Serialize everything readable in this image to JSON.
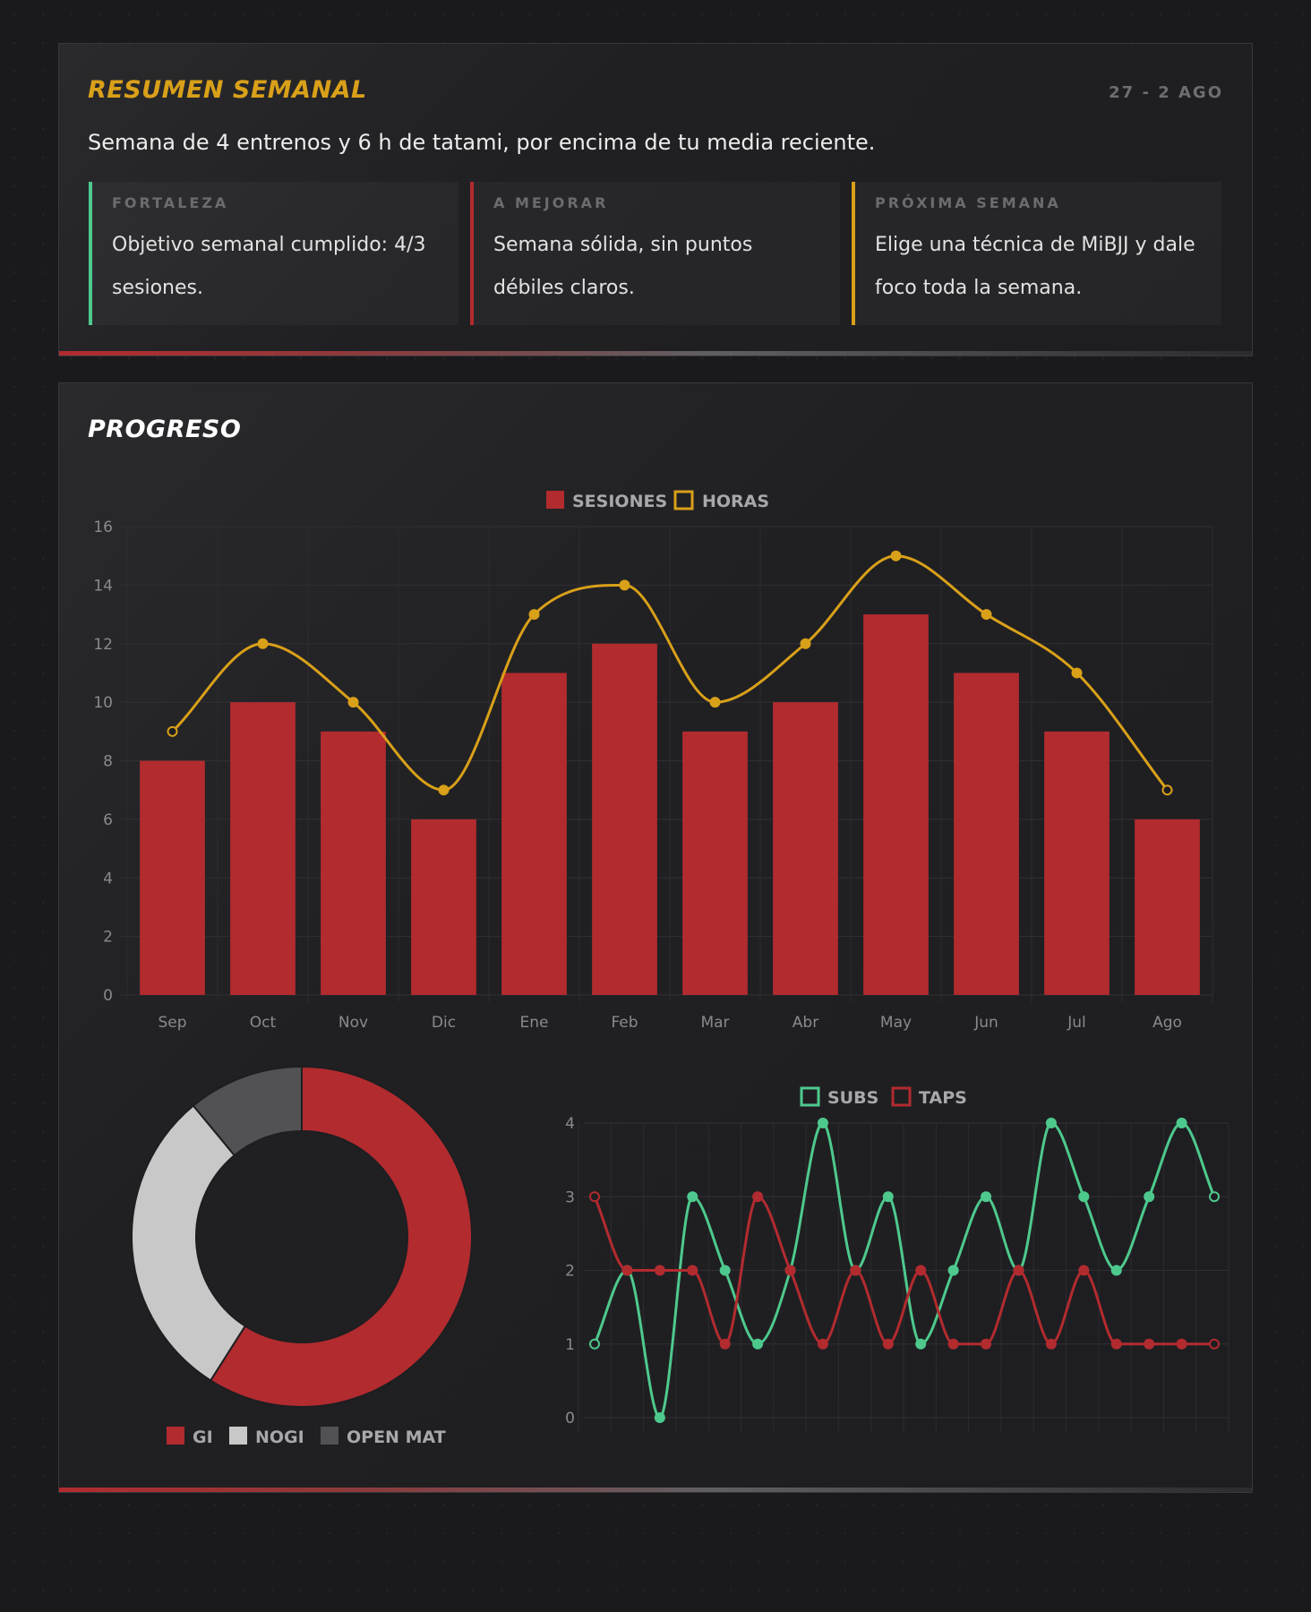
{
  "summary": {
    "title": "RESUMEN SEMANAL",
    "range": "27 - 2 AGO",
    "text": "Semana de 4 entrenos y 6 h de tatami, por encima de tu media reciente.",
    "insights": [
      {
        "label": "FORTALEZA",
        "text": "Objetivo semanal cumplido: 4/3 sesiones.",
        "color": "#4ec98d"
      },
      {
        "label": "A MEJORAR",
        "text": "Semana sólida, sin puntos débiles claros.",
        "color": "#b22b2f"
      },
      {
        "label": "PRÓXIMA SEMANA",
        "text": "Elige una técnica de MiBJJ y dale foco toda la semana.",
        "color": "#d9a019"
      }
    ]
  },
  "progress": {
    "title": "PROGRESO"
  },
  "chart_data": [
    {
      "type": "bar",
      "categories": [
        "Sep",
        "Oct",
        "Nov",
        "Dic",
        "Ene",
        "Feb",
        "Mar",
        "Abr",
        "May",
        "Jun",
        "Jul",
        "Ago"
      ],
      "series": [
        {
          "name": "SESIONES",
          "type": "bar",
          "color": "#b22b2f",
          "values": [
            8,
            10,
            9,
            6,
            11,
            12,
            9,
            10,
            13,
            11,
            9,
            6
          ]
        },
        {
          "name": "HORAS",
          "type": "line",
          "color": "#d9a019",
          "values": [
            9,
            12,
            10,
            7,
            13,
            14,
            10,
            12,
            15,
            13,
            11,
            7
          ]
        }
      ],
      "ylim": [
        0,
        16
      ],
      "yticks": [
        0,
        2,
        4,
        6,
        8,
        10,
        12,
        14,
        16
      ],
      "grid": true,
      "legend": "top-center"
    },
    {
      "type": "pie",
      "variant": "doughnut",
      "labels": [
        "GI",
        "NOGI",
        "OPEN MAT"
      ],
      "values": [
        59,
        30,
        11
      ],
      "colors": [
        "#b22b2f",
        "#c8c8c8",
        "#525254"
      ],
      "legend": "bottom-center"
    },
    {
      "type": "line",
      "x_count": 20,
      "series": [
        {
          "name": "SUBS",
          "color": "#4ec98d",
          "values": [
            1,
            2,
            0,
            3,
            2,
            1,
            2,
            4,
            2,
            3,
            1,
            2,
            3,
            2,
            4,
            3,
            2,
            3,
            4,
            3
          ]
        },
        {
          "name": "TAPS",
          "color": "#b22b2f",
          "values": [
            3,
            2,
            2,
            2,
            1,
            3,
            2,
            1,
            2,
            1,
            2,
            1,
            1,
            2,
            1,
            2,
            1,
            1,
            1,
            1
          ]
        }
      ],
      "ylim": [
        0,
        4
      ],
      "yticks": [
        0,
        1,
        2,
        3,
        4
      ],
      "grid": true,
      "legend": "top-center"
    }
  ]
}
